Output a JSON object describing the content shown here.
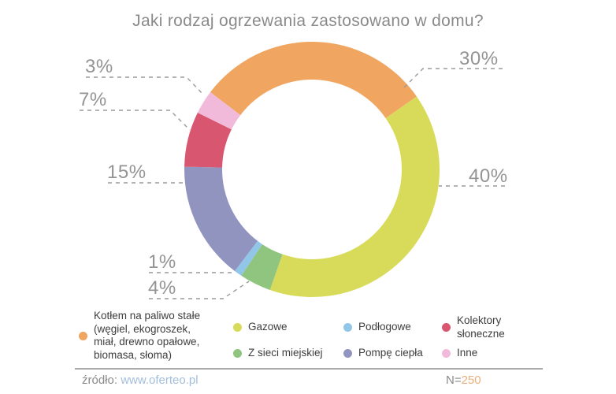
{
  "title": "Jaki rodzaj ogrzewania zastosowano w domu?",
  "chart_data": {
    "type": "pie",
    "subtype": "donut",
    "title": "Jaki rodzaj ogrzewania zastosowano w domu?",
    "units": "%",
    "start_angle_deg": -52.8,
    "legend_position": "bottom",
    "series": [
      {
        "name": "Kotłem na paliwo stałe (węgiel, ekogroszek, miał, drewno opałowe, biomasa, słoma)",
        "value": 30,
        "label": "30%",
        "color": "#F0A661"
      },
      {
        "name": "Gazowe",
        "value": 40,
        "label": "40%",
        "color": "#D8DB5A"
      },
      {
        "name": "Z sieci miejskiej",
        "value": 4,
        "label": "4%",
        "color": "#8FC57F"
      },
      {
        "name": "Podłogowe",
        "value": 1,
        "label": "1%",
        "color": "#92C6E9"
      },
      {
        "name": "Pompę ciepła",
        "value": 15,
        "label": "15%",
        "color": "#9194BF"
      },
      {
        "name": "Kolektory słoneczne",
        "value": 7,
        "label": "7%",
        "color": "#D95670"
      },
      {
        "name": "Inne",
        "value": 3,
        "label": "3%",
        "color": "#F2BADA"
      }
    ]
  },
  "legend": {
    "items": [
      {
        "label": "Kotłem na paliwo stałe\n(węgiel, ekogroszek,\nmiał, drewno opałowe,\nbiomasa, słoma)"
      },
      {
        "label": "Gazowe"
      },
      {
        "label": "Z sieci miejskiej"
      },
      {
        "label": "Podłogowe"
      },
      {
        "label": "Pompę ciepła"
      },
      {
        "label": "Kolektory\nsłoneczne"
      },
      {
        "label": "Inne"
      }
    ]
  },
  "footer": {
    "source_label": "źródło:",
    "source_link": "www.oferteo.pl",
    "n_label": "N=",
    "n_value": "250"
  }
}
